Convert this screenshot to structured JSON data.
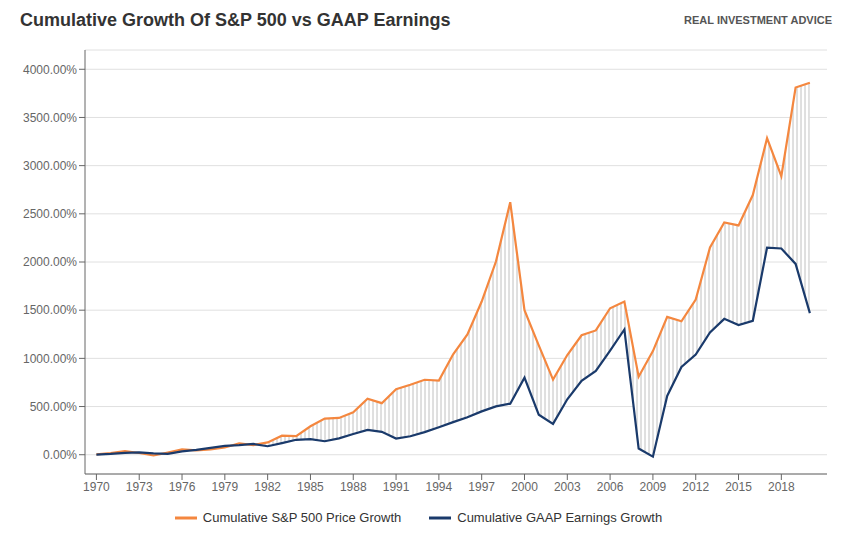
{
  "chart_data": {
    "type": "line",
    "title": "Cumulative Growth Of S&P 500 vs GAAP Earnings",
    "annotations": [
      "REAL INVESTMENT ADVICE"
    ],
    "x": [
      1970,
      1971,
      1972,
      1973,
      1974,
      1975,
      1976,
      1977,
      1978,
      1979,
      1980,
      1981,
      1982,
      1983,
      1984,
      1985,
      1986,
      1987,
      1988,
      1989,
      1990,
      1991,
      1992,
      1993,
      1994,
      1995,
      1996,
      1997,
      1998,
      1999,
      2000,
      2001,
      2002,
      2003,
      2004,
      2005,
      2006,
      2007,
      2008,
      2009,
      2010,
      2011,
      2012,
      2013,
      2014,
      2015,
      2016,
      2017,
      2018,
      2019,
      2020
    ],
    "series": [
      {
        "name": "Cumulative S&P 500 Price Growth",
        "color": "#f4873f",
        "values": [
          4,
          18,
          38,
          18,
          -8,
          22,
          55,
          45,
          55,
          75,
          118,
          100,
          128,
          198,
          193,
          295,
          375,
          382,
          440,
          582,
          535,
          680,
          726,
          778,
          770,
          1042,
          1248,
          1590,
          2005,
          2620,
          1500,
          1135,
          780,
          1035,
          1240,
          1290,
          1520,
          1590,
          810,
          1075,
          1430,
          1385,
          1610,
          2150,
          2410,
          2380,
          2695,
          3285,
          2890,
          3810,
          3860
        ]
      },
      {
        "name": "Cumulative GAAP Earnings Growth",
        "color": "#1a3a6b",
        "values": [
          2,
          8,
          20,
          25,
          14,
          8,
          35,
          50,
          72,
          92,
          100,
          112,
          88,
          120,
          155,
          162,
          140,
          170,
          215,
          258,
          238,
          168,
          192,
          235,
          285,
          338,
          388,
          450,
          502,
          530,
          800,
          415,
          320,
          575,
          768,
          870,
          1080,
          1300,
          65,
          -20,
          610,
          910,
          1040,
          1270,
          1410,
          1345,
          1390,
          2150,
          2140,
          1980,
          1470
        ]
      }
    ],
    "xlim": [
      1969.2,
      2021.2
    ],
    "xticks": [
      1970,
      1973,
      1976,
      1979,
      1982,
      1985,
      1988,
      1991,
      1994,
      1997,
      2000,
      2003,
      2006,
      2009,
      2012,
      2015,
      2018
    ],
    "ylim": [
      -200,
      4200
    ],
    "yticks": [
      {
        "value": 0,
        "label": "0.00%"
      },
      {
        "value": 500,
        "label": "500.00%"
      },
      {
        "value": 1000,
        "label": "1000.00%"
      },
      {
        "value": 1500,
        "label": "1500.00%"
      },
      {
        "value": 2000,
        "label": "2000.00%"
      },
      {
        "value": 2500,
        "label": "2500.00%"
      },
      {
        "value": 3000,
        "label": "3000.00%"
      },
      {
        "value": 3500,
        "label": "3500.00%"
      },
      {
        "value": 4000,
        "label": "4000.00%"
      }
    ],
    "grid": true
  }
}
